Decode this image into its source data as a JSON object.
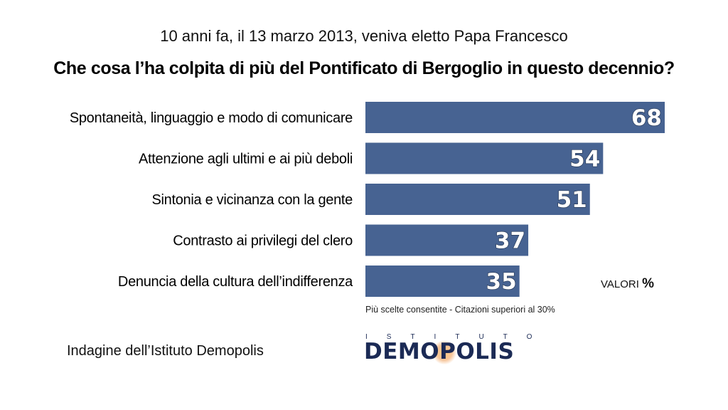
{
  "header": {
    "subtitle": "10 anni fa, il 13 marzo 2013, veniva eletto Papa Francesco",
    "title": "Che cosa l’ha colpita di più del Pontificato di Bergoglio in questo decennio?"
  },
  "chart_data": {
    "type": "bar",
    "orientation": "horizontal",
    "title": "Che cosa l’ha colpita di più del Pontificato di Bergoglio in questo decennio?",
    "subtitle": "10 anni fa, il 13 marzo 2013, veniva eletto Papa Francesco",
    "categories": [
      "Spontaneità, linguaggio e modo di comunicare",
      "Attenzione agli ultimi e ai più deboli",
      "Sintonia e vicinanza con la gente",
      "Contrasto ai privilegi del clero",
      "Denuncia della cultura dell’indifferenza"
    ],
    "values": [
      68,
      54,
      51,
      37,
      35
    ],
    "xlim": [
      0,
      68
    ],
    "bar_color": "#476392",
    "grid": false,
    "data_labels": true
  },
  "legend": {
    "unit_word": "VALORI",
    "unit_symbol": "%"
  },
  "note": "Più scelte consentite - Citazioni superiori al 30%",
  "source": "Indagine dell’Istituto Demopolis",
  "logo": {
    "top_text": "ISTITUTO",
    "main_text": "DEMOPOLIS"
  },
  "colors": {
    "bar": "#476392",
    "logo": "#1b2a55",
    "logo_accent": "#f0a050"
  }
}
